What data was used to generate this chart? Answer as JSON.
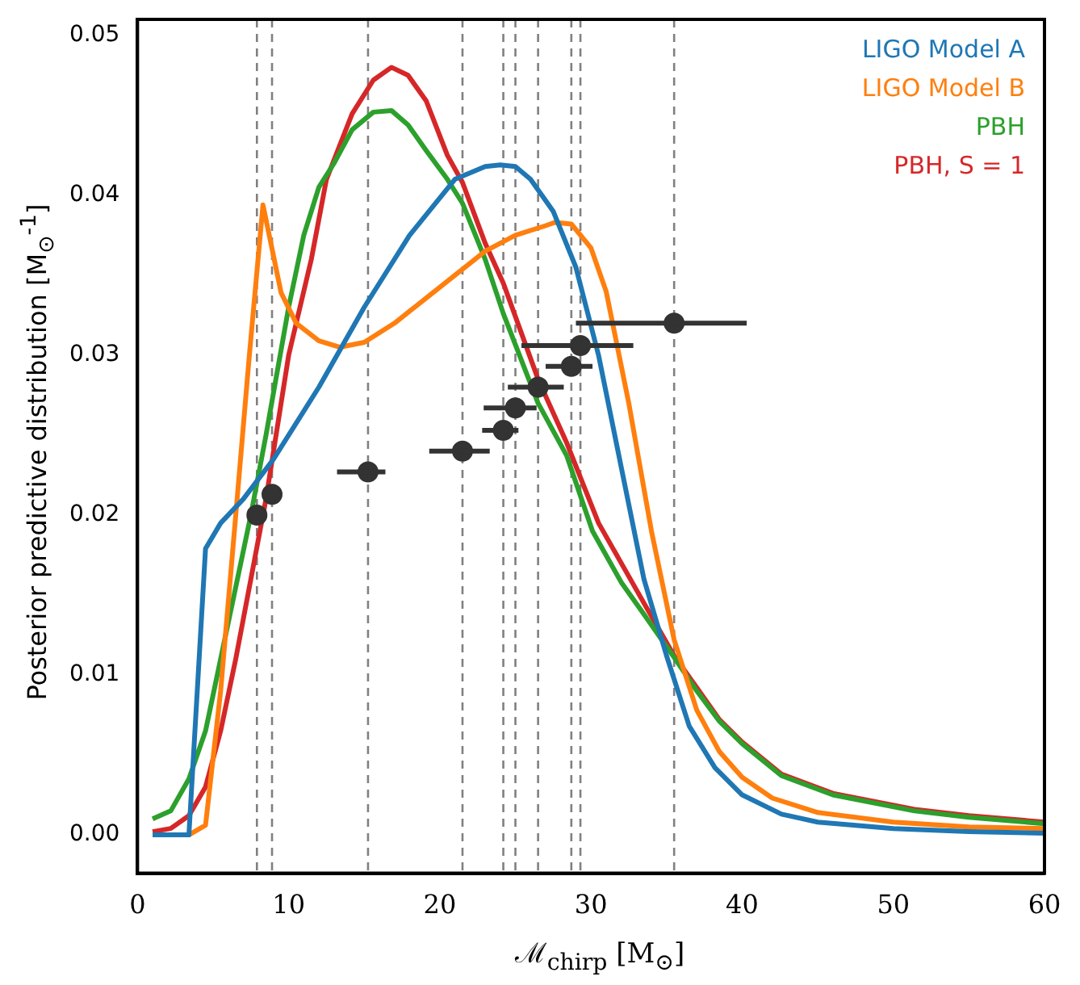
{
  "chart_data": {
    "type": "line",
    "xlabel": "ℳ$_{chirp}$ [M$_{⊙}$]",
    "ylabel": "Posterior predictive distribution [M$_{⊙}$$^{-1}$]",
    "xlim": [
      0,
      60
    ],
    "xticks": [
      0,
      10,
      20,
      30,
      40,
      50,
      60
    ],
    "ylim": [
      -0.0024,
      0.051
    ],
    "yticks": [
      {
        "value": 0,
        "label": "0.00"
      },
      {
        "value": 0.01,
        "label": "0.01"
      },
      {
        "value": 0.02,
        "label": "0.02"
      },
      {
        "value": 0.03,
        "label": "0.03"
      },
      {
        "value": 0.04,
        "label": "0.04"
      },
      {
        "value": 0.05,
        "label": "0.05"
      }
    ],
    "legend": "top right",
    "grid": false,
    "marker": "none",
    "line_style": "solid",
    "series": [
      {
        "name": "LIGO Model A",
        "color": "#1f77b4",
        "x": [
          1,
          2.2,
          3.4,
          4.5,
          5.5,
          7,
          9,
          12,
          15,
          18,
          21,
          23,
          24,
          25,
          26,
          27.5,
          29,
          30.5,
          32,
          33.5,
          35,
          36.5,
          38.2,
          40,
          42.6,
          45,
          50,
          55,
          60
        ],
        "values": [
          0,
          0,
          0,
          0.0179,
          0.0195,
          0.021,
          0.0235,
          0.028,
          0.033,
          0.0375,
          0.041,
          0.0418,
          0.0419,
          0.0418,
          0.041,
          0.039,
          0.0355,
          0.03,
          0.023,
          0.016,
          0.0112,
          0.0068,
          0.0042,
          0.0025,
          0.0013,
          0.0008,
          0.0004,
          0.0002,
          0.0001
        ]
      },
      {
        "name": "LIGO Model B",
        "color": "#ff7f0e",
        "x": [
          1,
          2.2,
          3.4,
          4.5,
          5.5,
          6.5,
          7.4,
          8.3,
          9.5,
          10.5,
          12,
          13.4,
          15,
          17,
          19,
          21,
          23,
          25,
          27,
          27.6,
          28.7,
          30,
          31,
          32.5,
          34,
          35.5,
          37,
          38.5,
          40,
          42,
          45,
          50,
          55,
          60
        ],
        "values": [
          0,
          0,
          0,
          0.0006,
          0.009,
          0.02,
          0.03,
          0.0394,
          0.0339,
          0.032,
          0.0309,
          0.0305,
          0.0308,
          0.032,
          0.0335,
          0.035,
          0.0365,
          0.0375,
          0.0381,
          0.0383,
          0.0382,
          0.0367,
          0.034,
          0.027,
          0.019,
          0.0122,
          0.0078,
          0.0052,
          0.0036,
          0.0023,
          0.0014,
          0.0008,
          0.0005,
          0.0004
        ]
      },
      {
        "name": "PBH",
        "color": "#2ca02c",
        "x": [
          1,
          2.2,
          3.4,
          4.5,
          5.5,
          6.5,
          7.5,
          8.5,
          10,
          11,
          12,
          13,
          14.2,
          15.6,
          16.8,
          17.9,
          19.1,
          20.5,
          21.5,
          23,
          24.2,
          26.5,
          28.4,
          30.1,
          32,
          33.5,
          35.5,
          37,
          38.5,
          40,
          42.6,
          46,
          51.4,
          55,
          60
        ],
        "values": [
          0.001,
          0.0015,
          0.0035,
          0.0065,
          0.011,
          0.0155,
          0.02,
          0.025,
          0.033,
          0.0375,
          0.0405,
          0.042,
          0.0441,
          0.0452,
          0.0453,
          0.0444,
          0.0428,
          0.041,
          0.0395,
          0.036,
          0.0326,
          0.027,
          0.0237,
          0.019,
          0.0158,
          0.0138,
          0.0111,
          0.009,
          0.0071,
          0.0057,
          0.0037,
          0.0025,
          0.0015,
          0.0011,
          0.0007
        ]
      },
      {
        "name": "PBH, S = 1",
        "color": "#d62728",
        "x": [
          1,
          2.2,
          3.4,
          4.5,
          5.5,
          6.5,
          7.5,
          8.5,
          10,
          11.5,
          12.5,
          14.2,
          15.6,
          16.8,
          17.9,
          19.1,
          20.5,
          21.5,
          23,
          24.2,
          26.5,
          28.4,
          30.5,
          32,
          33.5,
          35.5,
          37,
          38.5,
          40,
          42.6,
          46,
          51.4,
          55,
          60
        ],
        "values": [
          0.0002,
          0.0004,
          0.0012,
          0.003,
          0.0065,
          0.011,
          0.016,
          0.021,
          0.03,
          0.036,
          0.041,
          0.0451,
          0.0472,
          0.048,
          0.0475,
          0.0459,
          0.0425,
          0.0408,
          0.037,
          0.0345,
          0.0285,
          0.0245,
          0.0195,
          0.017,
          0.0145,
          0.0112,
          0.0092,
          0.0072,
          0.0058,
          0.0038,
          0.0026,
          0.0016,
          0.0012,
          0.0008
        ]
      },
      {
        "type": "scatter",
        "color": "#333333",
        "marker": "circle",
        "x": [
          7.9,
          8.9,
          15.25,
          21.5,
          24.2,
          25.0,
          26.5,
          28.7,
          29.3,
          35.5
        ],
        "values": [
          0.02,
          0.0213,
          0.0227,
          0.024,
          0.0253,
          0.0267,
          0.028,
          0.0293,
          0.0306,
          0.032
        ],
        "xerrors": [
          null,
          null,
          [
            13.2,
            16.4
          ],
          [
            19.3,
            23.3
          ],
          [
            22.8,
            25.2
          ],
          [
            22.9,
            26.4
          ],
          [
            24.5,
            28.2
          ],
          [
            27.0,
            30.1
          ],
          [
            25.4,
            32.8
          ],
          [
            29.0,
            40.3
          ]
        ]
      }
    ],
    "ref_lines": [
      {
        "axis": "x",
        "value": 7.9,
        "color": "#808080",
        "line_style": "dashed"
      },
      {
        "axis": "x",
        "value": 8.9,
        "color": "#808080",
        "line_style": "dashed"
      },
      {
        "axis": "x",
        "value": 15.25,
        "color": "#808080",
        "line_style": "dashed"
      },
      {
        "axis": "x",
        "value": 21.5,
        "color": "#808080",
        "line_style": "dashed"
      },
      {
        "axis": "x",
        "value": 24.2,
        "color": "#808080",
        "line_style": "dashed"
      },
      {
        "axis": "x",
        "value": 25.0,
        "color": "#808080",
        "line_style": "dashed"
      },
      {
        "axis": "x",
        "value": 26.5,
        "color": "#808080",
        "line_style": "dashed"
      },
      {
        "axis": "x",
        "value": 28.7,
        "color": "#808080",
        "line_style": "dashed"
      },
      {
        "axis": "x",
        "value": 29.3,
        "color": "#808080",
        "line_style": "dashed"
      },
      {
        "axis": "x",
        "value": 35.5,
        "color": "#808080",
        "line_style": "dashed"
      }
    ]
  }
}
